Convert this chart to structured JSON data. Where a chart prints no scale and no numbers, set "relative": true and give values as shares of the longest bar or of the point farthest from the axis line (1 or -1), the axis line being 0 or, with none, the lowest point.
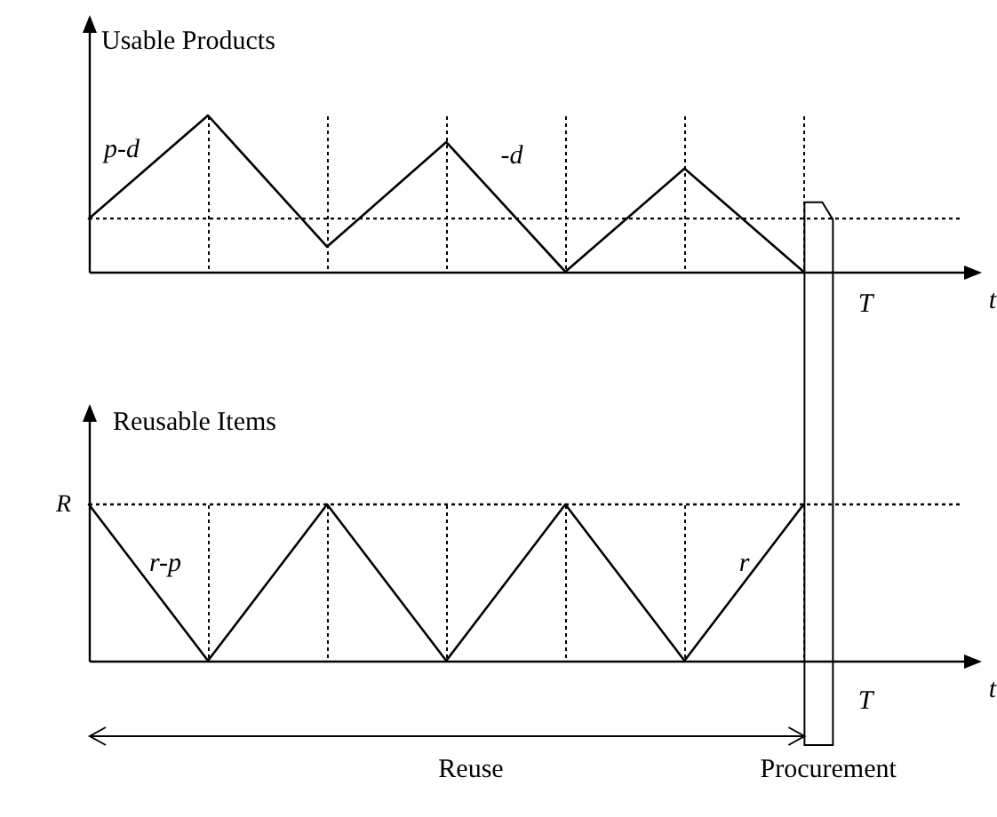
{
  "chart_data": [
    {
      "type": "line",
      "title": "Usable Products",
      "xlabel": "t",
      "categories": [
        null,
        null,
        null,
        null,
        null,
        null,
        null
      ],
      "values": [
        0.34,
        1,
        0.16,
        0.83,
        0,
        0.66,
        0
      ],
      "color": "#000000",
      "relative": true,
      "grid": "x",
      "ref_lines": [
        {
          "axis": "y",
          "value": 0.34,
          "line_style": "dotted"
        }
      ],
      "annotations": [
        "p-d",
        "-d",
        "T"
      ]
    },
    {
      "type": "line",
      "title": "Reusable Items",
      "xlabel": "t",
      "categories": [
        null,
        null,
        null,
        null,
        null,
        null,
        null
      ],
      "values": [
        1,
        0,
        1,
        0,
        1,
        0,
        1
      ],
      "color": "#000000",
      "relative": true,
      "grid": "x",
      "ref_lines": [
        {
          "axis": "y",
          "value": 1,
          "label": "R",
          "line_style": "dotted"
        }
      ],
      "annotations": [
        "r-p",
        "r",
        "T",
        "Reuse",
        "Procurement"
      ]
    }
  ]
}
